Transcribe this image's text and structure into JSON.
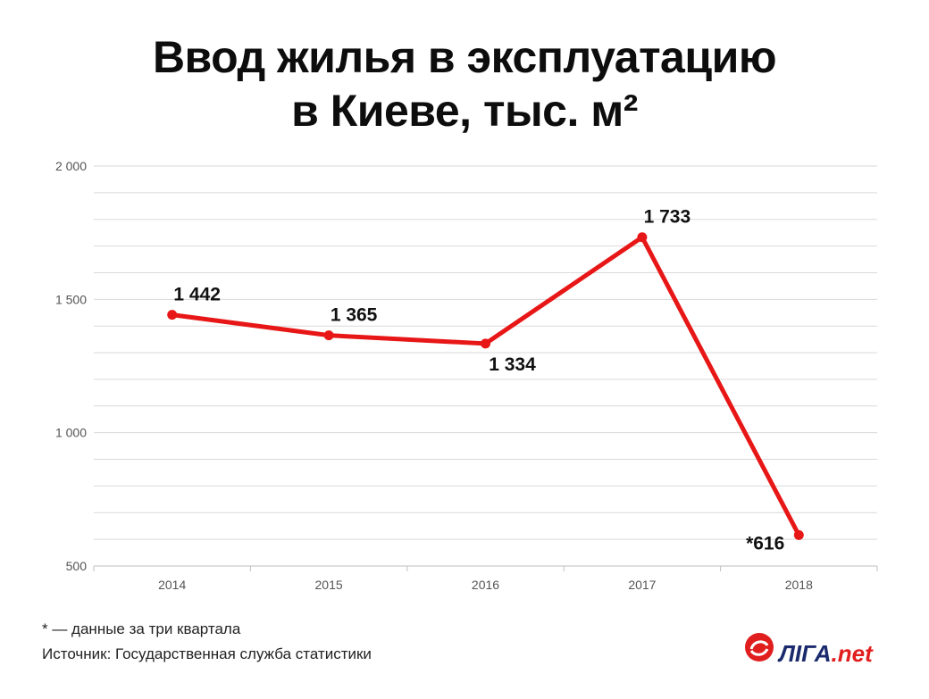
{
  "title_line1": "Ввод жилья в эксплуатацию",
  "title_line2": "в Киеве, тыс. м²",
  "chart_data": {
    "type": "line",
    "title": "Ввод жилья в эксплуатацию в Киеве, тыс. м²",
    "categories": [
      "2014",
      "2015",
      "2016",
      "2017",
      "2018"
    ],
    "values": [
      1442,
      1365,
      1334,
      1733,
      616
    ],
    "data_labels": [
      "1 442",
      "1 365",
      "1 334",
      "1 733",
      "*616"
    ],
    "ylim": [
      500,
      2000
    ],
    "y_ticks": [
      500,
      1000,
      1500,
      2000
    ],
    "y_tick_labels": [
      "500",
      "1 000",
      "1 500",
      "2 000"
    ],
    "grid": true,
    "line_color": "#e81717"
  },
  "footnote": "* — данные за три квартала",
  "source": "Источник: Государственная служба статистики",
  "logo": {
    "text_main": "ЛІГА",
    "text_domain": ".net",
    "brand_color": "#1a2a6c",
    "accent_color": "#e01e1e"
  }
}
